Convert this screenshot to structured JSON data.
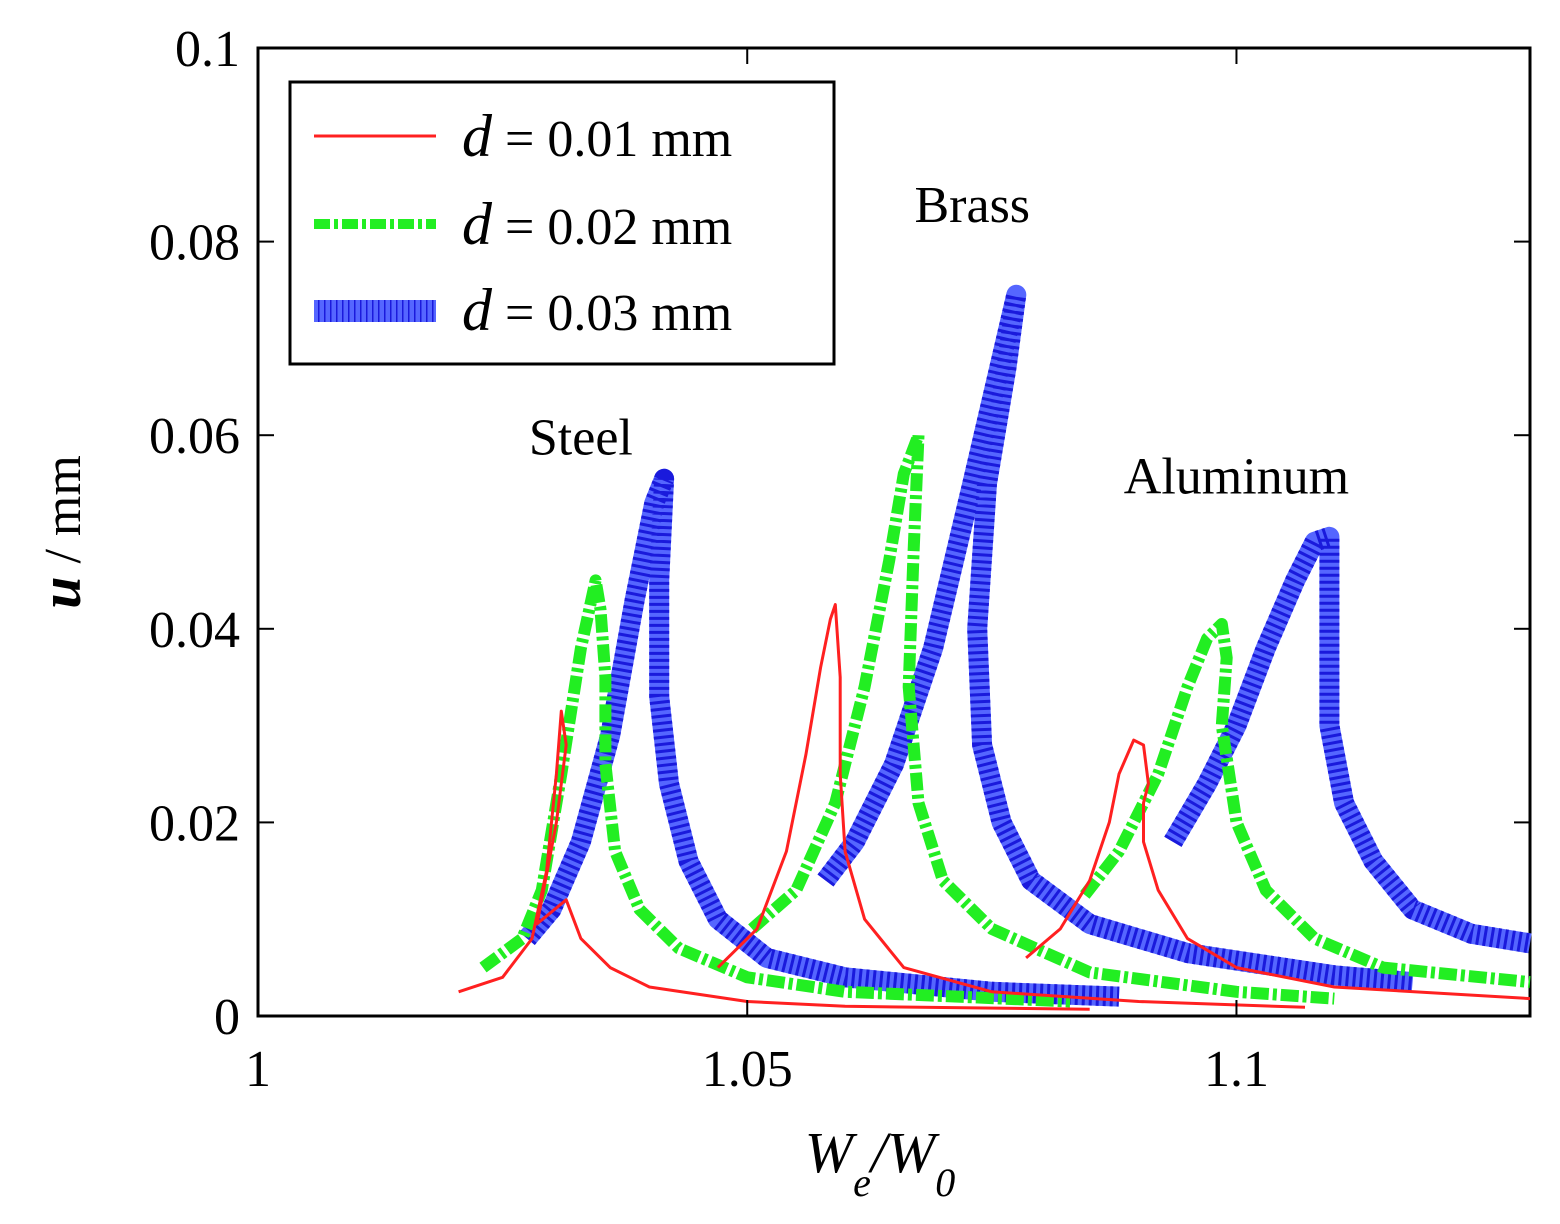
{
  "chart_data": {
    "type": "line",
    "title": "",
    "xlabel": "We/W0",
    "xlabel_parts": {
      "main": "W",
      "sub1": "e",
      "slash": "/W",
      "sub2": "0"
    },
    "ylabel": "u / mm",
    "ylabel_parts": {
      "var": "u",
      "unit": " / mm"
    },
    "xlim": [
      1.0,
      1.13
    ],
    "ylim": [
      0,
      0.1
    ],
    "xticks": [
      1.0,
      1.05,
      1.1
    ],
    "xtick_labels": [
      "1",
      "1.05",
      "1.1"
    ],
    "yticks": [
      0,
      0.02,
      0.04,
      0.06,
      0.08,
      0.1
    ],
    "ytick_labels": [
      "0",
      "0.02",
      "0.04",
      "0.06",
      "0.08",
      "0.1"
    ],
    "grid": false,
    "legend_position": "top-left",
    "legend": [
      {
        "var": "d",
        "text": " = 0.01 mm",
        "color": "#ff2020",
        "style": "solid"
      },
      {
        "var": "d",
        "text": " = 0.02 mm",
        "color": "#22ee22",
        "style": "dash-dot"
      },
      {
        "var": "d",
        "text": " = 0.03 mm",
        "color": "#3344ee",
        "style": "hatched"
      }
    ],
    "annotations": [
      {
        "text": "Steel",
        "x": 1.033,
        "y": 0.058
      },
      {
        "text": "Brass",
        "x": 1.073,
        "y": 0.082
      },
      {
        "text": "Aluminum",
        "x": 1.1,
        "y": 0.054
      }
    ],
    "series": [
      {
        "name": "Steel d=0.01",
        "group": "d = 0.01 mm",
        "x": [
          1.0205,
          1.025,
          1.028,
          1.0295,
          1.0305,
          1.031,
          1.0315,
          1.0305,
          1.029,
          1.0285,
          1.0315,
          1.033,
          1.036,
          1.04,
          1.05,
          1.06,
          1.085
        ],
        "y": [
          0.0025,
          0.004,
          0.008,
          0.015,
          0.025,
          0.0315,
          0.028,
          0.02,
          0.012,
          0.0095,
          0.012,
          0.008,
          0.005,
          0.003,
          0.0015,
          0.001,
          0.0007
        ]
      },
      {
        "name": "Steel d=0.02",
        "group": "d = 0.02 mm",
        "x": [
          1.023,
          1.027,
          1.029,
          1.031,
          1.033,
          1.0345,
          1.035,
          1.0355,
          1.0355,
          1.0365,
          1.039,
          1.043,
          1.05,
          1.06,
          1.083
        ],
        "y": [
          0.005,
          0.008,
          0.013,
          0.025,
          0.038,
          0.045,
          0.042,
          0.035,
          0.026,
          0.017,
          0.011,
          0.007,
          0.004,
          0.0025,
          0.0015
        ]
      },
      {
        "name": "Steel d=0.03",
        "group": "d = 0.03 mm",
        "x": [
          1.0275,
          1.03,
          1.033,
          1.036,
          1.0385,
          1.0405,
          1.0415,
          1.041,
          1.041,
          1.042,
          1.044,
          1.047,
          1.052,
          1.06,
          1.075,
          1.088
        ],
        "y": [
          0.008,
          0.011,
          0.018,
          0.029,
          0.043,
          0.053,
          0.0555,
          0.045,
          0.033,
          0.024,
          0.016,
          0.01,
          0.006,
          0.004,
          0.0025,
          0.002
        ]
      },
      {
        "name": "Brass d=0.01",
        "group": "d = 0.01 mm",
        "x": [
          1.047,
          1.051,
          1.054,
          1.056,
          1.0575,
          1.0585,
          1.059,
          1.0595,
          1.0595,
          1.06,
          1.062,
          1.066,
          1.075,
          1.09,
          1.107
        ],
        "y": [
          0.005,
          0.009,
          0.017,
          0.027,
          0.036,
          0.041,
          0.0425,
          0.035,
          0.025,
          0.017,
          0.01,
          0.005,
          0.0025,
          0.0015,
          0.0009
        ]
      },
      {
        "name": "Brass d=0.02",
        "group": "d = 0.02 mm",
        "x": [
          1.0505,
          1.055,
          1.059,
          1.062,
          1.0645,
          1.066,
          1.0675,
          1.067,
          1.0665,
          1.0675,
          1.07,
          1.075,
          1.085,
          1.1,
          1.11
        ],
        "y": [
          0.009,
          0.013,
          0.022,
          0.034,
          0.047,
          0.056,
          0.06,
          0.048,
          0.034,
          0.022,
          0.014,
          0.009,
          0.0045,
          0.0025,
          0.0018
        ]
      },
      {
        "name": "Brass d=0.03",
        "group": "d = 0.03 mm",
        "x": [
          1.058,
          1.061,
          1.065,
          1.069,
          1.073,
          1.076,
          1.0775,
          1.0765,
          1.0745,
          1.0735,
          1.074,
          1.076,
          1.079,
          1.085,
          1.095,
          1.11,
          1.118
        ],
        "y": [
          0.014,
          0.018,
          0.026,
          0.038,
          0.055,
          0.068,
          0.0745,
          0.067,
          0.055,
          0.04,
          0.028,
          0.02,
          0.014,
          0.0095,
          0.0065,
          0.0042,
          0.0035
        ]
      },
      {
        "name": "Aluminum d=0.01",
        "group": "d = 0.01 mm",
        "x": [
          1.0785,
          1.082,
          1.085,
          1.087,
          1.088,
          1.0895,
          1.0905,
          1.091,
          1.0905,
          1.0905,
          1.092,
          1.095,
          1.1,
          1.11,
          1.13
        ],
        "y": [
          0.006,
          0.009,
          0.014,
          0.02,
          0.025,
          0.0285,
          0.028,
          0.024,
          0.022,
          0.018,
          0.013,
          0.008,
          0.005,
          0.003,
          0.0018
        ]
      },
      {
        "name": "Aluminum d=0.02",
        "group": "d = 0.02 mm",
        "x": [
          1.0845,
          1.088,
          1.092,
          1.095,
          1.097,
          1.0985,
          1.099,
          1.0985,
          1.1,
          1.103,
          1.108,
          1.115,
          1.13
        ],
        "y": [
          0.0125,
          0.017,
          0.025,
          0.034,
          0.039,
          0.0405,
          0.037,
          0.03,
          0.02,
          0.013,
          0.008,
          0.005,
          0.0035
        ]
      },
      {
        "name": "Aluminum d=0.03",
        "group": "d = 0.03 mm",
        "x": [
          1.0935,
          1.097,
          1.1,
          1.103,
          1.106,
          1.108,
          1.1095,
          1.1095,
          1.1095,
          1.111,
          1.114,
          1.118,
          1.124,
          1.13
        ],
        "y": [
          0.018,
          0.024,
          0.03,
          0.038,
          0.045,
          0.049,
          0.0495,
          0.04,
          0.03,
          0.022,
          0.016,
          0.011,
          0.0085,
          0.0075
        ]
      }
    ]
  }
}
